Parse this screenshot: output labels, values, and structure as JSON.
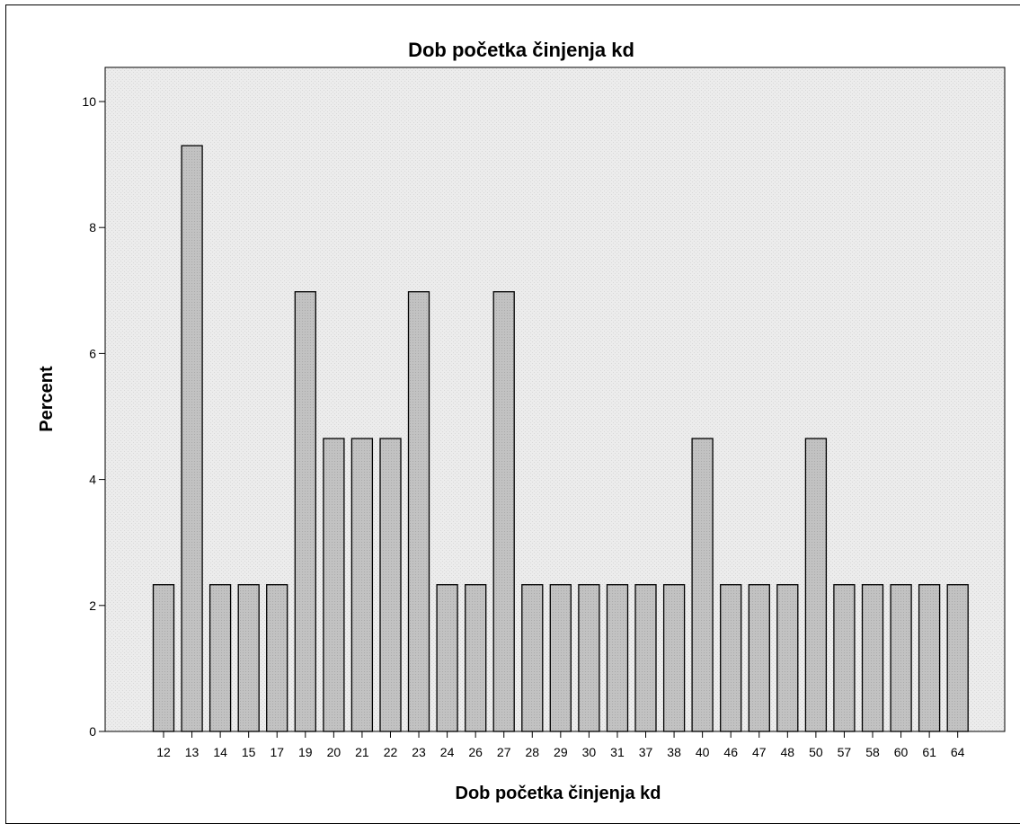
{
  "chart_data": {
    "type": "bar",
    "title": "Dob početka činjenja kd",
    "xlabel": "Dob početka činjenja kd",
    "ylabel": "Percent",
    "categories": [
      "12",
      "13",
      "14",
      "15",
      "17",
      "19",
      "20",
      "21",
      "22",
      "23",
      "24",
      "26",
      "27",
      "28",
      "29",
      "30",
      "31",
      "37",
      "38",
      "40",
      "46",
      "47",
      "48",
      "50",
      "57",
      "58",
      "60",
      "61",
      "64"
    ],
    "values": [
      2.33,
      9.3,
      2.33,
      2.33,
      2.33,
      6.98,
      4.65,
      4.65,
      4.65,
      6.98,
      2.33,
      2.33,
      6.98,
      2.33,
      2.33,
      2.33,
      2.33,
      2.33,
      2.33,
      4.65,
      2.33,
      2.33,
      2.33,
      4.65,
      2.33,
      2.33,
      2.33,
      2.33,
      2.33
    ],
    "ylim": [
      0,
      10
    ],
    "yticks": [
      "0",
      "2",
      "4",
      "6",
      "8",
      "10"
    ],
    "grid": false,
    "colors": {
      "plot_background": "#e8e8e8",
      "bar_fill": "#bdbdbd",
      "bar_stroke": "#000000"
    }
  }
}
